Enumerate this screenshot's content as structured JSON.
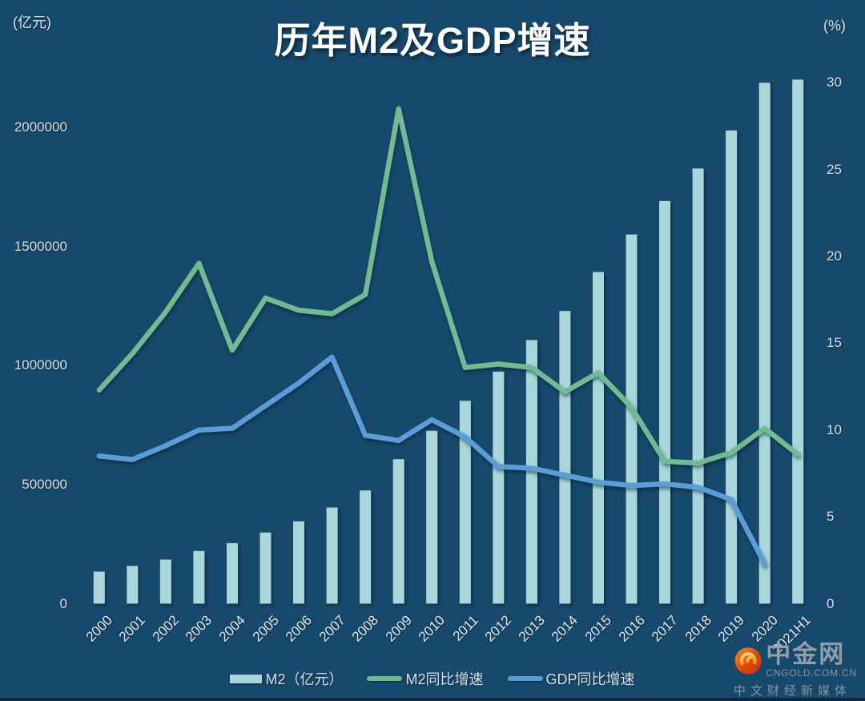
{
  "title": "历年M2及GDP增速",
  "left_axis": {
    "unit": "(亿元)",
    "ticks": [
      "0",
      "500000",
      "1000000",
      "1500000",
      "2000000"
    ]
  },
  "right_axis": {
    "unit": "(%)",
    "ticks": [
      "0",
      "5",
      "10",
      "15",
      "20",
      "25",
      "30"
    ]
  },
  "legend": [
    {
      "label": "M2（亿元）",
      "type": "bar",
      "color": "#A8D6DB"
    },
    {
      "label": "M2同比增速",
      "type": "line",
      "color": "#71BA94"
    },
    {
      "label": "GDP同比增速",
      "type": "line",
      "color": "#5B9DD7"
    }
  ],
  "watermark": {
    "brand": "中金网",
    "domain": "CNGOLD.COM.CN",
    "tagline": "中文财经新媒体"
  },
  "colors": {
    "background": "#17496C",
    "bar": "#A8D6DB",
    "m2_line": "#71BA94",
    "gdp_line": "#5B9DD7",
    "axis_line": "#9AA4AC",
    "title_text": "#FFFFFF",
    "tick_text": "#D9DEE3"
  },
  "chart_data": {
    "type": "bar",
    "subtype": "combo-bar-line",
    "title": "历年M2及GDP增速",
    "categories": [
      "2000",
      "2001",
      "2002",
      "2003",
      "2004",
      "2005",
      "2006",
      "2007",
      "2008",
      "2009",
      "2010",
      "2011",
      "2012",
      "2013",
      "2014",
      "2015",
      "2016",
      "2017",
      "2018",
      "2019",
      "2020",
      "2021H1"
    ],
    "series": [
      {
        "name": "M2（亿元）",
        "type": "bar",
        "axis": "left",
        "color": "#A8D6DB",
        "values": [
          134610,
          158301,
          185007,
          221223,
          254107,
          298756,
          345604,
          403442,
          475167,
          606225,
          725852,
          851591,
          974149,
          1106525,
          1228375,
          1392278,
          1550067,
          1690235,
          1826744,
          1986489,
          2186795,
          2200000
        ]
      },
      {
        "name": "M2同比增速",
        "type": "line",
        "axis": "right",
        "color": "#71BA94",
        "values": [
          12.3,
          14.4,
          16.8,
          19.6,
          14.6,
          17.6,
          16.9,
          16.7,
          17.8,
          28.5,
          19.7,
          13.6,
          13.8,
          13.6,
          12.2,
          13.3,
          11.3,
          8.2,
          8.1,
          8.7,
          10.1,
          8.6
        ]
      },
      {
        "name": "GDP同比增速",
        "type": "line",
        "axis": "right",
        "color": "#5B9DD7",
        "values": [
          8.5,
          8.3,
          9.1,
          10.0,
          10.1,
          11.4,
          12.7,
          14.2,
          9.7,
          9.4,
          10.6,
          9.6,
          7.9,
          7.8,
          7.4,
          7.0,
          6.8,
          6.9,
          6.7,
          6.0,
          2.3,
          null
        ]
      }
    ],
    "left_ylabel": "(亿元)",
    "right_ylabel": "(%)",
    "left_ylim": [
      0,
      2000000
    ],
    "right_ylim": [
      0,
      30
    ],
    "grid": false,
    "legend_position": "bottom"
  }
}
